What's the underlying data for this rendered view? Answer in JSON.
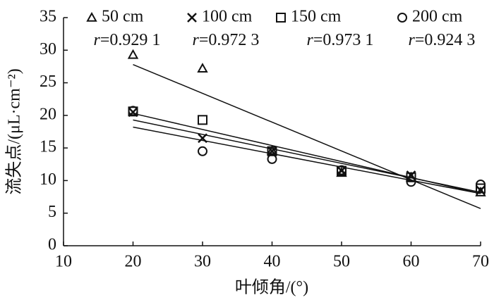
{
  "chart_data": {
    "type": "scatter",
    "xlabel": "叶倾角/(°)",
    "ylabel": "流失点/(μL·cm⁻²)",
    "x": [
      20,
      30,
      40,
      50,
      60,
      70
    ],
    "xlim": [
      10,
      70
    ],
    "xticks": [
      10,
      20,
      30,
      40,
      50,
      60,
      70
    ],
    "ylim": [
      0,
      35
    ],
    "yticks": [
      0,
      5,
      10,
      15,
      20,
      25,
      30,
      35
    ],
    "fit_x": [
      20,
      70
    ],
    "series": [
      {
        "name": "50 cm",
        "marker": "triangle",
        "color": "#111111",
        "r_label": "r=0.929 1",
        "values": [
          29.3,
          27.2,
          14.6,
          11.2,
          10.5,
          8.2
        ],
        "fit": [
          27.8,
          5.7
        ]
      },
      {
        "name": "100 cm",
        "marker": "x",
        "color": "#111111",
        "r_label": "r=0.972 3",
        "values": [
          20.5,
          16.5,
          14.5,
          11.5,
          10.8,
          8.5
        ],
        "fit": [
          18.2,
          8.0
        ]
      },
      {
        "name": "150 cm",
        "marker": "square",
        "color": "#111111",
        "r_label": "r=0.973 1",
        "values": [
          20.6,
          19.3,
          14.5,
          11.5,
          10.5,
          8.8
        ],
        "fit": [
          19.3,
          8.2
        ]
      },
      {
        "name": "200 cm",
        "marker": "circle",
        "color": "#111111",
        "r_label": "r=0.924 3",
        "values": [
          20.7,
          14.5,
          13.3,
          11.6,
          9.8,
          9.4
        ],
        "fit": [
          20.3,
          8.0
        ]
      }
    ]
  }
}
